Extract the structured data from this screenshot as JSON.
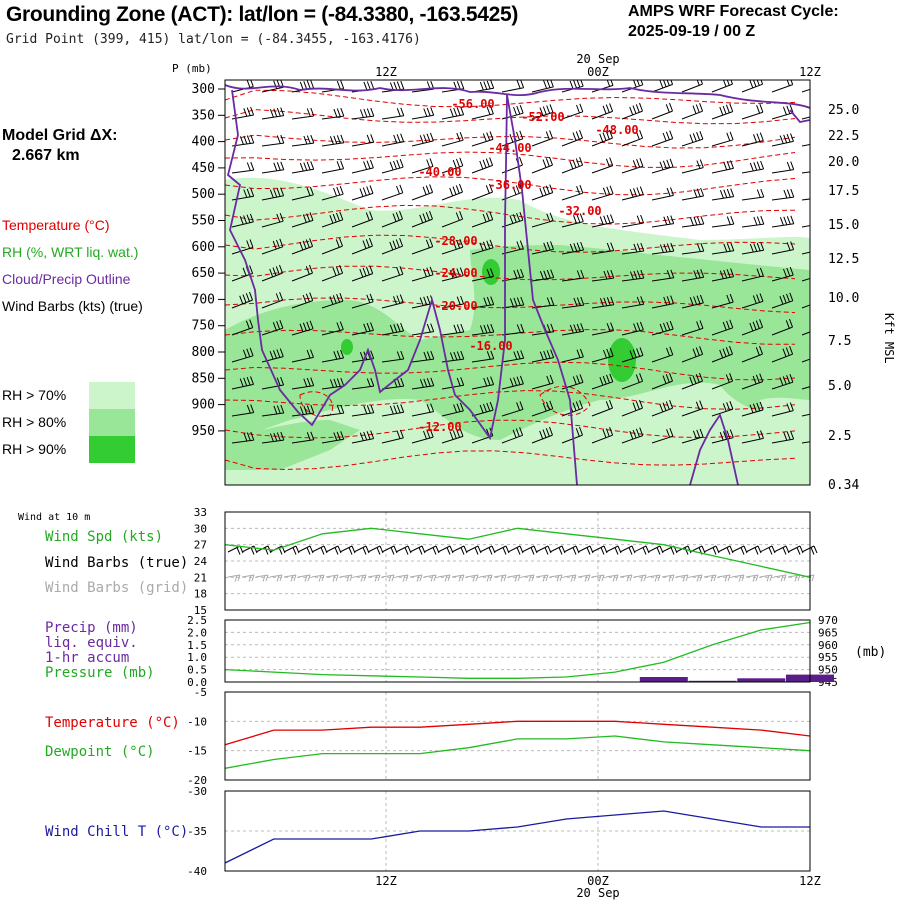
{
  "header": {
    "title": "Grounding Zone (ACT):  lat/lon = (-84.3380, -163.5425)",
    "subtitle": "Grid Point (399, 415) lat/lon = (-84.3455, -163.4176)",
    "cycle_label": "AMPS WRF Forecast Cycle:",
    "cycle_value": "2025-09-19 / 00  Z"
  },
  "model_grid": {
    "label": "Model Grid ΔX:",
    "value": "2.667 km"
  },
  "legend": {
    "temperature": "Temperature (°C)",
    "rh": "RH (%, WRT liq. wat.)",
    "cloud": "Cloud/Precip Outline",
    "wind": "Wind Barbs (kts) (true)",
    "rh70": "RH > 70%",
    "rh80": "RH > 80%",
    "rh90": "RH > 90%"
  },
  "time_axis": {
    "date_label": "20 Sep",
    "ticks": [
      "12Z",
      "00Z",
      "12Z"
    ]
  },
  "colors": {
    "temperature": "#e00000",
    "rh70": "#ccf5cc",
    "rh80": "#99e699",
    "rh90": "#33cc33",
    "cloud": "#6a2aa0",
    "green_line": "#22bb22",
    "precip_bar": "#5a1e8a",
    "windchill": "#1a1aa0",
    "grid_barb": "#aaaaaa"
  },
  "chart_data": [
    {
      "type": "contour",
      "name": "vertical-cross-section",
      "y_axis_label": "P (mb)",
      "pressure_levels": [
        300,
        350,
        400,
        450,
        500,
        550,
        600,
        650,
        700,
        750,
        800,
        850,
        900,
        950
      ],
      "height_axis_label": "Kft MSL",
      "height_ticks": [
        "25.0",
        "22.5",
        "20.0",
        "17.5",
        "15.0",
        "12.5",
        "10.0",
        "7.5",
        "5.0",
        "2.5",
        "0.34"
      ],
      "temperature_contour_labels": [
        "-56.00",
        "-52.00",
        "-48.00",
        "-44.00",
        "-40.00",
        "-36.00",
        "-32.00",
        "-28.00",
        "-24.00",
        "-20.00",
        "-16.00",
        "-12.00"
      ]
    },
    {
      "type": "line",
      "name": "wind-at-10m",
      "panel_label": "Wind at 10 m",
      "series_labels": {
        "speed": "Wind Spd (kts)",
        "barbs_true": "Wind Barbs (true)",
        "barbs_grid": "Wind Barbs (grid)"
      },
      "y_ticks": [
        33,
        30,
        27,
        24,
        21,
        18,
        15
      ],
      "ylim": [
        15,
        33
      ],
      "x_hours": [
        0,
        3,
        6,
        9,
        12,
        15,
        18,
        21,
        24,
        27,
        30,
        33,
        36
      ],
      "values": [
        27,
        26,
        29,
        30,
        29,
        28,
        30,
        29,
        28,
        27,
        25,
        23,
        21
      ]
    },
    {
      "type": "bar+line",
      "name": "precip-pressure",
      "series_labels": {
        "precip1": "Precip (mm)",
        "precip2": "liq. equiv.",
        "precip3": "1-hr accum",
        "pressure": "Pressure (mb)"
      },
      "unit_label": "(mb)",
      "left_ticks": [
        "2.5",
        "2.0",
        "1.5",
        "1.0",
        "0.5",
        "0.0"
      ],
      "right_ticks": [
        "970",
        "965",
        "960",
        "955",
        "950",
        "945"
      ],
      "precip_ylim": [
        0,
        2.5
      ],
      "pressure_ylim": [
        945,
        970
      ],
      "x_hours": [
        0,
        3,
        6,
        9,
        12,
        15,
        18,
        21,
        24,
        27,
        30,
        33,
        36
      ],
      "pressure": [
        950,
        949,
        948,
        947.5,
        947,
        946.5,
        946.5,
        947,
        949,
        953,
        960,
        966,
        969
      ],
      "precip": [
        0,
        0,
        0,
        0,
        0,
        0,
        0,
        0,
        0,
        0.2,
        0.05,
        0.15,
        0.3
      ]
    },
    {
      "type": "line",
      "name": "temp-dewpoint",
      "series_labels": {
        "temperature": "Temperature (°C)",
        "dewpoint": "Dewpoint (°C)"
      },
      "y_ticks": [
        -5,
        -10,
        -15,
        -20
      ],
      "ylim": [
        -20,
        -5
      ],
      "x_hours": [
        0,
        3,
        6,
        9,
        12,
        15,
        18,
        21,
        24,
        27,
        30,
        33,
        36
      ],
      "temperature": [
        -14,
        -11.5,
        -11.5,
        -11,
        -11,
        -10.5,
        -10,
        -10,
        -10,
        -10.5,
        -11,
        -11.5,
        -12.5
      ],
      "dewpoint": [
        -18,
        -16.5,
        -15.5,
        -15.5,
        -15.5,
        -14.5,
        -13,
        -13,
        -12.5,
        -13.5,
        -14,
        -14.5,
        -15
      ]
    },
    {
      "type": "line",
      "name": "wind-chill",
      "series_labels": {
        "windchill": "Wind Chill T (°C)"
      },
      "y_ticks": [
        -30,
        -35,
        -40
      ],
      "ylim": [
        -40,
        -30
      ],
      "x_hours": [
        0,
        3,
        6,
        9,
        12,
        15,
        18,
        21,
        24,
        27,
        30,
        33,
        36
      ],
      "values": [
        -39,
        -36,
        -36,
        -36,
        -35,
        -35,
        -34.5,
        -33.5,
        -33,
        -32.5,
        -33.5,
        -34.5,
        -34.5
      ]
    }
  ]
}
